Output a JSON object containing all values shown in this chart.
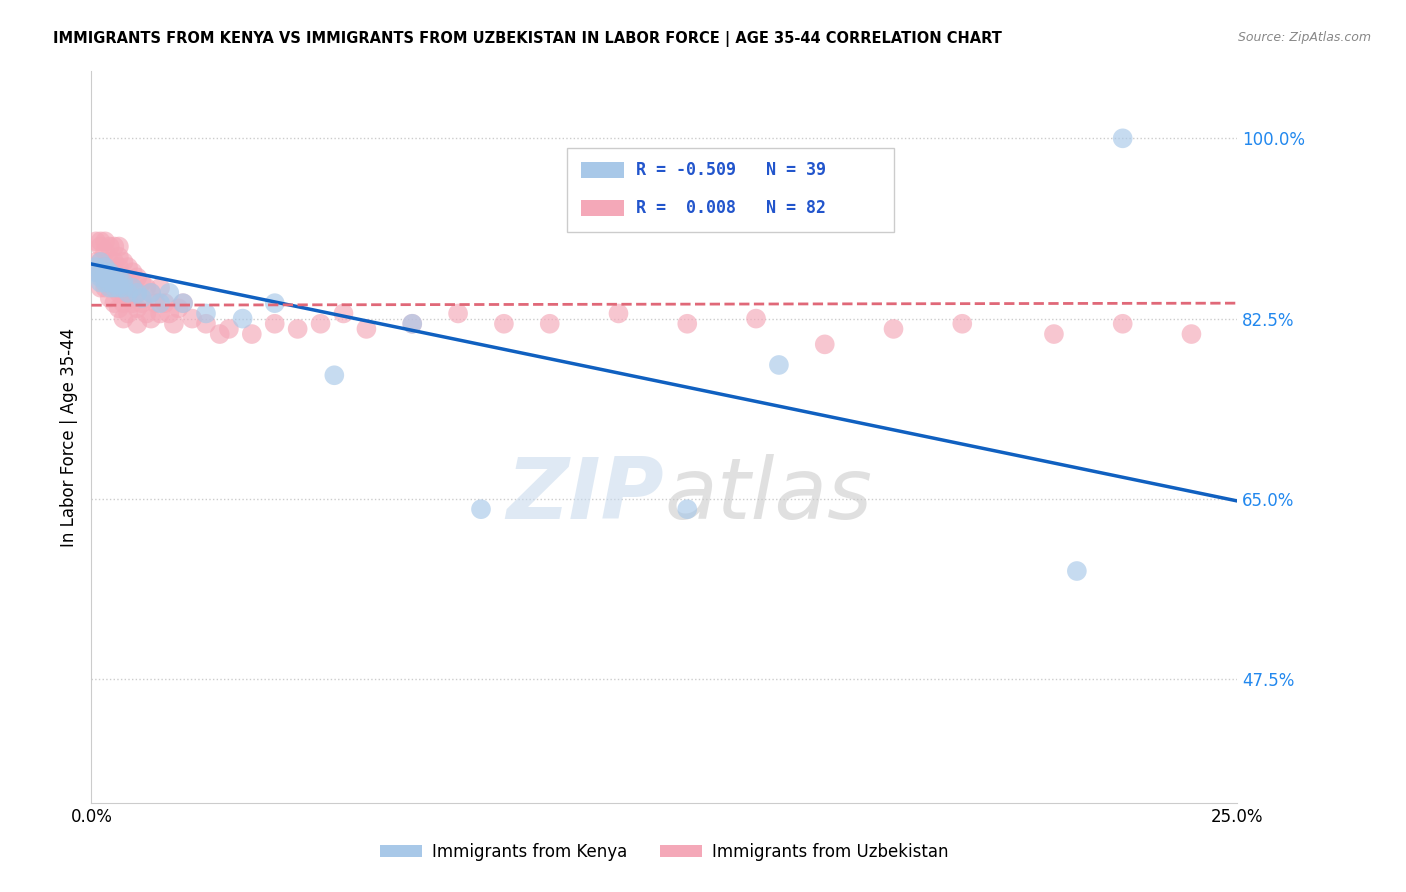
{
  "title": "IMMIGRANTS FROM KENYA VS IMMIGRANTS FROM UZBEKISTAN IN LABOR FORCE | AGE 35-44 CORRELATION CHART",
  "source": "Source: ZipAtlas.com",
  "ylabel": "In Labor Force | Age 35-44",
  "legend_kenya": "Immigrants from Kenya",
  "legend_uzbekistan": "Immigrants from Uzbekistan",
  "R_kenya": -0.509,
  "N_kenya": 39,
  "R_uzbekistan": 0.008,
  "N_uzbekistan": 82,
  "xlim": [
    0.0,
    0.25
  ],
  "ylim": [
    0.355,
    1.065
  ],
  "ytick_positions": [
    0.475,
    0.65,
    0.825,
    1.0
  ],
  "ytick_labels": [
    "47.5%",
    "65.0%",
    "82.5%",
    "100.0%"
  ],
  "color_kenya": "#a8c8e8",
  "color_uzbekistan": "#f4a8b8",
  "color_line_kenya": "#1060c0",
  "color_line_uzbekistan": "#e06878",
  "watermark_zip": "ZIP",
  "watermark_atlas": "atlas",
  "kenya_x": [
    0.001,
    0.001,
    0.002,
    0.002,
    0.002,
    0.002,
    0.003,
    0.003,
    0.003,
    0.003,
    0.004,
    0.004,
    0.004,
    0.005,
    0.005,
    0.005,
    0.006,
    0.006,
    0.006,
    0.007,
    0.007,
    0.008,
    0.009,
    0.01,
    0.011,
    0.013,
    0.015,
    0.017,
    0.02,
    0.025,
    0.033,
    0.04,
    0.053,
    0.07,
    0.085,
    0.13,
    0.15,
    0.215,
    0.225
  ],
  "kenya_y": [
    0.875,
    0.87,
    0.88,
    0.86,
    0.87,
    0.865,
    0.875,
    0.86,
    0.865,
    0.87,
    0.86,
    0.855,
    0.87,
    0.865,
    0.855,
    0.86,
    0.858,
    0.865,
    0.855,
    0.86,
    0.855,
    0.85,
    0.855,
    0.85,
    0.845,
    0.85,
    0.84,
    0.85,
    0.84,
    0.83,
    0.825,
    0.84,
    0.77,
    0.82,
    0.64,
    0.64,
    0.78,
    0.58,
    1.0
  ],
  "uzbekistan_x": [
    0.001,
    0.001,
    0.001,
    0.002,
    0.002,
    0.002,
    0.002,
    0.002,
    0.003,
    0.003,
    0.003,
    0.003,
    0.003,
    0.004,
    0.004,
    0.004,
    0.004,
    0.004,
    0.005,
    0.005,
    0.005,
    0.005,
    0.005,
    0.006,
    0.006,
    0.006,
    0.006,
    0.006,
    0.006,
    0.007,
    0.007,
    0.007,
    0.007,
    0.007,
    0.008,
    0.008,
    0.008,
    0.008,
    0.009,
    0.009,
    0.009,
    0.01,
    0.01,
    0.01,
    0.01,
    0.011,
    0.011,
    0.012,
    0.012,
    0.013,
    0.013,
    0.014,
    0.015,
    0.015,
    0.016,
    0.017,
    0.018,
    0.019,
    0.02,
    0.022,
    0.025,
    0.028,
    0.03,
    0.035,
    0.04,
    0.045,
    0.05,
    0.055,
    0.06,
    0.07,
    0.08,
    0.09,
    0.1,
    0.115,
    0.13,
    0.145,
    0.16,
    0.175,
    0.19,
    0.21,
    0.225,
    0.24
  ],
  "uzbekistan_y": [
    0.9,
    0.88,
    0.87,
    0.9,
    0.895,
    0.88,
    0.87,
    0.855,
    0.9,
    0.89,
    0.875,
    0.865,
    0.855,
    0.895,
    0.88,
    0.87,
    0.86,
    0.845,
    0.895,
    0.88,
    0.87,
    0.855,
    0.84,
    0.895,
    0.885,
    0.875,
    0.865,
    0.85,
    0.835,
    0.88,
    0.865,
    0.855,
    0.84,
    0.825,
    0.875,
    0.86,
    0.845,
    0.83,
    0.87,
    0.855,
    0.84,
    0.865,
    0.85,
    0.835,
    0.82,
    0.86,
    0.84,
    0.855,
    0.83,
    0.85,
    0.825,
    0.84,
    0.855,
    0.83,
    0.84,
    0.83,
    0.82,
    0.835,
    0.84,
    0.825,
    0.82,
    0.81,
    0.815,
    0.81,
    0.82,
    0.815,
    0.82,
    0.83,
    0.815,
    0.82,
    0.83,
    0.82,
    0.82,
    0.83,
    0.82,
    0.825,
    0.8,
    0.815,
    0.82,
    0.81,
    0.82,
    0.81
  ]
}
